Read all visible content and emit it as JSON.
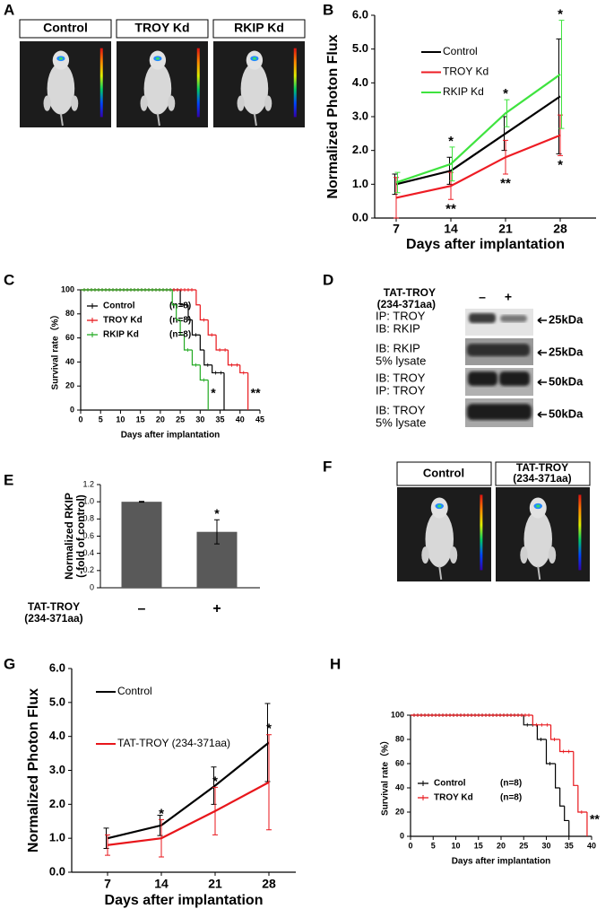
{
  "panel_labels": [
    "A",
    "B",
    "C",
    "D",
    "E",
    "F",
    "G",
    "H"
  ],
  "panel_a": {
    "labels": [
      "Control",
      "TROY Kd",
      "RKIP Kd"
    ],
    "colors": [
      "#000000",
      "#e8161b",
      "#22dd22"
    ]
  },
  "panel_d": {
    "treatment": "TAT-TROY",
    "treatment_detail": "(234-371aa)",
    "lanes": [
      "–",
      "+"
    ],
    "rows": [
      {
        "line1": "IP: TROY",
        "line2": "IB: RKIP",
        "size": "25kDa"
      },
      {
        "line1": "IB: RKIP",
        "line2": "5% lysate",
        "size": "25kDa"
      },
      {
        "line1": "IB: TROY",
        "line2": "IP: TROY",
        "size": "50kDa"
      },
      {
        "line1": "IB: TROY",
        "line2": "5% lysate",
        "size": "50kDa"
      }
    ]
  },
  "panel_f": {
    "labels": [
      {
        "line1": "Control"
      },
      {
        "line1": "TAT-TROY",
        "line2": "(234-371aa)"
      }
    ]
  },
  "chart_data": [
    {
      "type": "line",
      "y_label": "Normalized Photon Flux",
      "x_label": "Days after implantation",
      "categories": [
        "7",
        "14",
        "21",
        "28"
      ],
      "ylim": [
        0,
        6
      ],
      "yticks": [
        {
          "value": 0,
          "label": "0.0"
        },
        {
          "value": 1,
          "label": "1.0"
        },
        {
          "value": 2,
          "label": "2.0"
        },
        {
          "value": 3,
          "label": "3.0"
        },
        {
          "value": 4,
          "label": "4.0"
        },
        {
          "value": 5,
          "label": "5.0"
        },
        {
          "value": 6,
          "label": "6.0"
        }
      ],
      "legend": "upper left",
      "series": [
        {
          "name": "Control",
          "color": "#000000",
          "values": [
            1.0,
            1.4,
            2.5,
            3.6
          ],
          "errors": [
            0.3,
            0.4,
            0.5,
            1.7
          ],
          "annotations": [
            null,
            null,
            null,
            null
          ],
          "annotation_position": "above"
        },
        {
          "name": "TROY Kd",
          "color": "#ee1c24",
          "values": [
            0.6,
            0.95,
            1.8,
            2.45
          ],
          "errors": [
            0.6,
            0.4,
            0.5,
            0.6
          ],
          "annotations": [
            null,
            "**",
            "**",
            "*"
          ],
          "annotation_position": "below"
        },
        {
          "name": "RKIP Kd",
          "color": "#3fe33f",
          "values": [
            1.05,
            1.6,
            3.1,
            4.25
          ],
          "errors": [
            0.3,
            0.5,
            0.4,
            1.6
          ],
          "annotations": [
            null,
            "*",
            "*",
            "*"
          ],
          "annotation_position": "above"
        }
      ]
    },
    {
      "type": "step",
      "y_label": "Survival rate（%）",
      "x_label": "Days after implantation",
      "xlim": [
        0,
        45
      ],
      "xticks": [
        0,
        5,
        10,
        15,
        20,
        25,
        30,
        35,
        40,
        45
      ],
      "ylim": [
        0,
        100
      ],
      "yticks": [
        0,
        20,
        40,
        60,
        80,
        100
      ],
      "series": [
        {
          "name": "Control",
          "n_label": "(n=8)",
          "color": "#000000",
          "x": [
            0,
            25,
            27,
            28,
            30,
            31,
            33,
            36
          ],
          "values": [
            100,
            87.5,
            75,
            62.5,
            50,
            37.5,
            31,
            0
          ],
          "end_label": null
        },
        {
          "name": "TROY Kd",
          "n_label": "(n=8)",
          "color": "#e8161b",
          "x": [
            0,
            29,
            30,
            32,
            34,
            37,
            40,
            42
          ],
          "values": [
            100,
            87.5,
            75,
            62.5,
            50,
            37.5,
            31,
            0
          ],
          "end_label": "**"
        },
        {
          "name": "RKIP Kd",
          "n_label": "(n=8)",
          "color": "#22aa22",
          "x": [
            0,
            23,
            24,
            25,
            26,
            28,
            30,
            32
          ],
          "values": [
            100,
            87.5,
            75,
            62.5,
            50,
            37.5,
            25,
            0
          ],
          "end_label": "*"
        }
      ]
    },
    {
      "type": "bar",
      "y_label": "Normalized RKIP",
      "y_label_line2": "(-fold of control)",
      "x_label": "TAT-TROY",
      "x_label_line2": "(234-371aa)",
      "categories": [
        "–",
        "+"
      ],
      "values": [
        1.0,
        0.65
      ],
      "errors": [
        0.005,
        0.14
      ],
      "annotations": [
        null,
        "*"
      ],
      "color": "#595959",
      "ylim": [
        0,
        1.2
      ],
      "yticks": [
        0,
        0.2,
        0.4,
        0.6,
        0.8,
        {
          "value": 1.0,
          "label": "1.0"
        },
        1.2
      ]
    },
    {
      "type": "line",
      "y_label": "Normalized Photon Flux",
      "x_label": "Days after implantation",
      "categories": [
        "7",
        "14",
        "21",
        "28"
      ],
      "ylim": [
        0,
        6
      ],
      "yticks": [
        {
          "value": 0,
          "label": "0.0"
        },
        {
          "value": 1,
          "label": "1.0"
        },
        {
          "value": 2,
          "label": "2.0"
        },
        {
          "value": 3,
          "label": "3.0"
        },
        {
          "value": 4,
          "label": "4.0"
        },
        {
          "value": 5,
          "label": "5.0"
        },
        {
          "value": 6,
          "label": "6.0"
        }
      ],
      "legend": "upper left",
      "series": [
        {
          "name": "Control",
          "color": "#000000",
          "values": [
            1.0,
            1.38,
            2.55,
            3.82
          ],
          "errors": [
            0.3,
            0.3,
            0.55,
            1.15
          ],
          "annotations": [
            null,
            null,
            null,
            null
          ],
          "annotation_position": "above"
        },
        {
          "name": "TAT-TROY (234-371aa)",
          "color": "#e8161b",
          "values": [
            0.8,
            1.0,
            1.8,
            2.65
          ],
          "errors": [
            0.3,
            0.55,
            0.7,
            1.4
          ],
          "annotations": [
            null,
            "*",
            "*",
            "*"
          ],
          "annotation_position": "above"
        }
      ]
    },
    {
      "type": "step",
      "y_label": "Survival rate（%）",
      "x_label": "Days after implantation",
      "xlim": [
        0,
        40
      ],
      "xticks": [
        0,
        5,
        10,
        15,
        20,
        25,
        30,
        35,
        40
      ],
      "ylim": [
        0,
        100
      ],
      "yticks": [
        0,
        20,
        40,
        60,
        80,
        100
      ],
      "series": [
        {
          "name": "Control",
          "n_label": "(n=8)",
          "color": "#000000",
          "x": [
            0,
            25,
            28,
            30,
            32,
            33,
            34,
            35
          ],
          "values": [
            100,
            92,
            80,
            60,
            40,
            25,
            13,
            0
          ],
          "end_label": null
        },
        {
          "name": "TROY Kd",
          "n_label": "(n=8)",
          "color": "#e8161b",
          "x": [
            0,
            27,
            31,
            33,
            36,
            37,
            39
          ],
          "values": [
            100,
            92,
            80,
            70,
            42,
            20,
            0
          ],
          "end_label": "**"
        }
      ]
    }
  ]
}
